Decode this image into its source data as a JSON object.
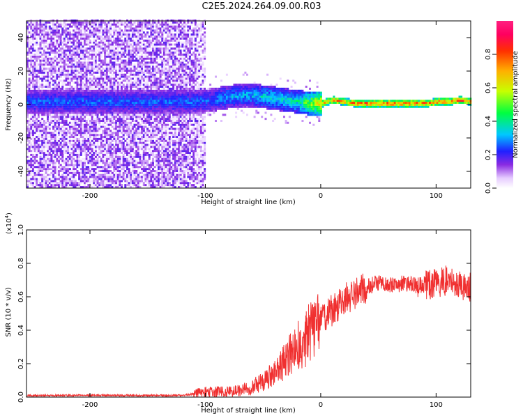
{
  "page_title": "C2E5.2024.264.09.00.R03",
  "chart_data": [
    {
      "type": "heatmap",
      "xlabel": "Height of straight line (km)",
      "ylabel": "Frequency (Hz)",
      "xlim": [
        -255,
        130
      ],
      "ylim": [
        -50,
        50
      ],
      "xticks": [
        -200,
        -100,
        0,
        100
      ],
      "yticks": [
        -40,
        -20,
        0,
        20,
        40
      ],
      "colorbar": {
        "label": "Normalized spectral amplitude",
        "range": [
          0,
          1
        ],
        "ticks": [
          "0.0",
          "0.2",
          "0.4",
          "0.6",
          "0.8"
        ],
        "colormap": "rainbow (white→purple→blue→cyan→green→yellow→red→magenta)"
      },
      "noise_region_x": [
        -255,
        -100
      ],
      "signal_frequency_track": {
        "x": [
          -110,
          -95,
          -80,
          -65,
          -50,
          -40,
          -30,
          -20,
          -10,
          0,
          10,
          20,
          30,
          40,
          60,
          80,
          92,
          100,
          110,
          120,
          130
        ],
        "y": [
          1,
          2,
          4,
          5,
          4,
          3,
          2,
          1,
          0,
          0,
          2,
          1,
          0,
          0,
          0,
          0,
          0,
          1,
          1,
          2,
          1
        ],
        "amplitude": [
          0.3,
          0.3,
          0.35,
          0.35,
          0.4,
          0.4,
          0.4,
          0.45,
          0.6,
          0.75,
          0.8,
          0.8,
          0.9,
          0.9,
          0.9,
          0.9,
          0.9,
          0.9,
          0.9,
          0.9,
          0.9
        ]
      },
      "grid": false
    },
    {
      "type": "line",
      "xlabel": "Height of straight line (km)",
      "ylabel": "SNR (10 * v/v)",
      "scale_label": "(x10",
      "scale_exp": "4",
      "scale_close": ")",
      "xlim": [
        -255,
        130
      ],
      "ylim": [
        0,
        1.0
      ],
      "xticks": [
        -200,
        -100,
        0,
        100
      ],
      "yticks": [
        "0.0",
        "0.2",
        "0.4",
        "0.6",
        "0.8",
        "1.0"
      ],
      "series": [
        {
          "color": "#f03030",
          "x": [
            -255,
            -200,
            -150,
            -120,
            -110,
            -100,
            -90,
            -80,
            -70,
            -60,
            -50,
            -40,
            -30,
            -20,
            -10,
            0,
            10,
            20,
            30,
            40,
            50,
            60,
            70,
            80,
            90,
            100,
            110,
            120,
            130
          ],
          "y": [
            0.01,
            0.01,
            0.01,
            0.01,
            0.02,
            0.03,
            0.03,
            0.03,
            0.04,
            0.06,
            0.09,
            0.14,
            0.22,
            0.3,
            0.38,
            0.45,
            0.52,
            0.58,
            0.62,
            0.66,
            0.68,
            0.67,
            0.68,
            0.67,
            0.67,
            0.68,
            0.7,
            0.67,
            0.66
          ]
        }
      ],
      "grid": false
    }
  ]
}
